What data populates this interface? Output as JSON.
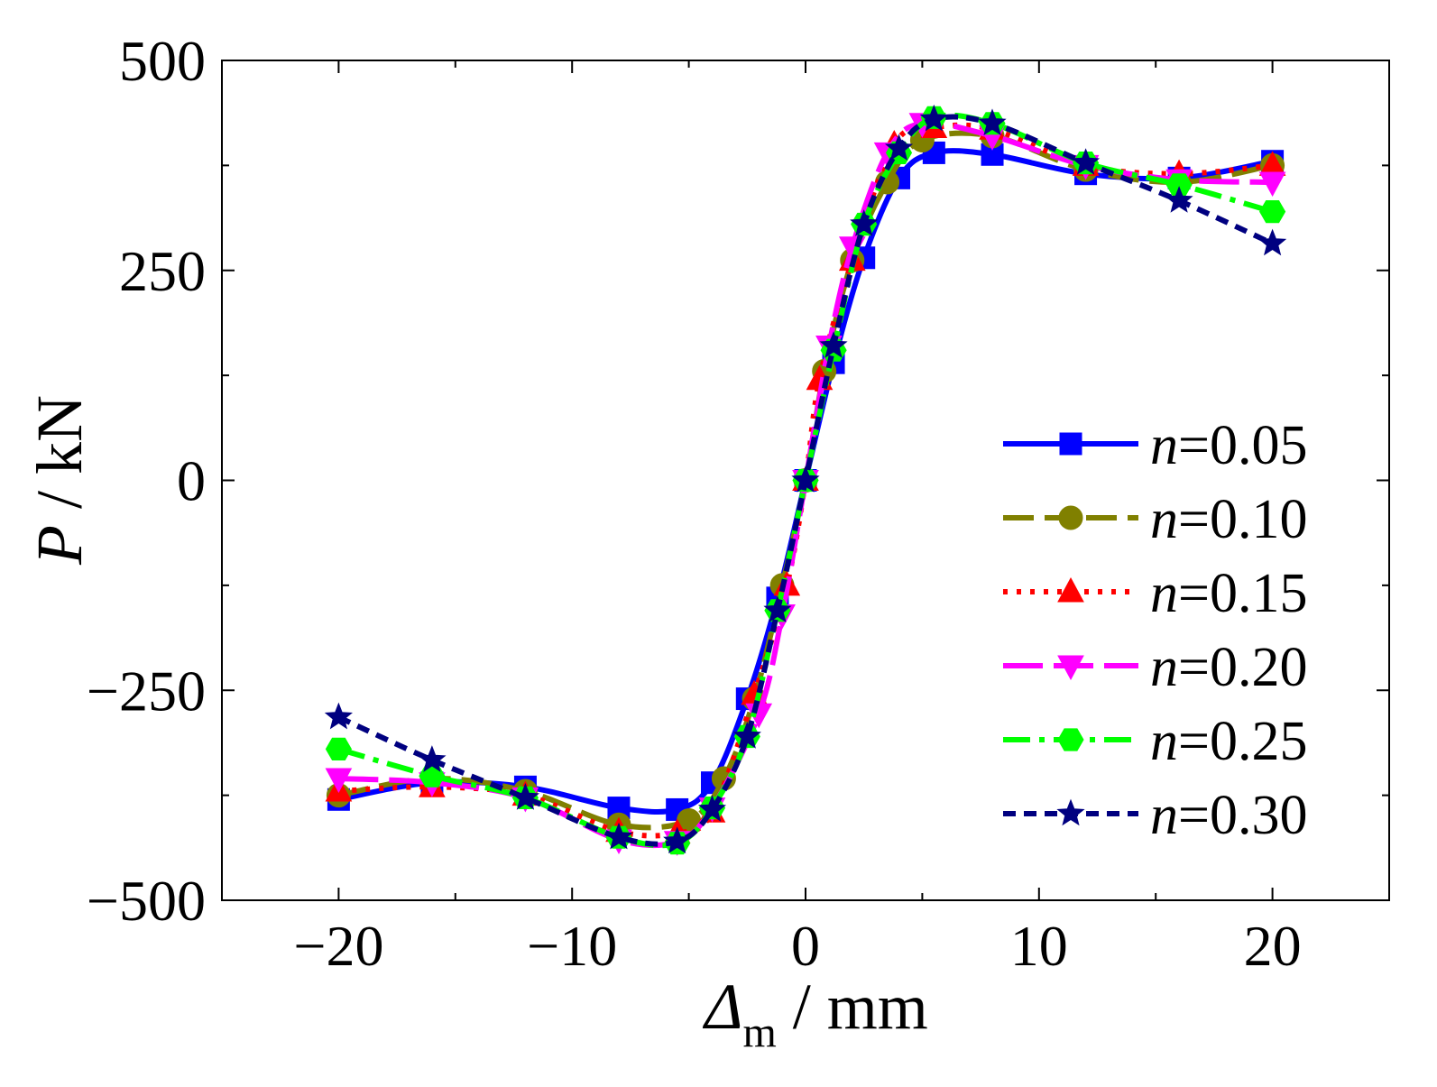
{
  "chart_data": {
    "type": "line",
    "title": "",
    "xlabel": {
      "symbol": "Δ",
      "subscript": "m",
      "unit": " / mm"
    },
    "ylabel": {
      "symbol": "P",
      "unit": " / kN"
    },
    "xlim": [
      -25,
      25
    ],
    "ylim": [
      -500,
      500
    ],
    "xticks": [
      -20,
      -10,
      0,
      10,
      20
    ],
    "xtick_labels": [
      "−20",
      "−10",
      "0",
      "10",
      "20"
    ],
    "yticks": [
      -500,
      -250,
      0,
      250,
      500
    ],
    "ytick_labels": [
      "−500",
      "−250",
      "0",
      "250",
      "500"
    ],
    "grid": false,
    "legend_position": "right",
    "series": [
      {
        "name": "n=0.05",
        "label_var": "n",
        "label_val": "=0.05",
        "color": "#0000ff",
        "marker": "square",
        "dash": "solid",
        "x": [
          -20,
          -16,
          -12,
          -8,
          -5.5,
          -4,
          -2.5,
          -1.2,
          0,
          1.2,
          2.5,
          4,
          5.5,
          8,
          12,
          16,
          20
        ],
        "y": [
          -380,
          -360,
          -365,
          -390,
          -392,
          -360,
          -260,
          -140,
          0,
          140,
          265,
          360,
          390,
          388,
          365,
          360,
          380
        ]
      },
      {
        "name": "n=0.10",
        "label_var": "n",
        "label_val": "=0.10",
        "color": "#808000",
        "marker": "circle",
        "dash": "dash",
        "x": [
          -20,
          -16,
          -12,
          -8,
          -5,
          -3.5,
          -2.2,
          -1,
          0,
          0.8,
          2,
          3.5,
          5,
          8,
          12,
          16,
          20
        ],
        "y": [
          -375,
          -355,
          -370,
          -410,
          -405,
          -355,
          -260,
          -125,
          0,
          130,
          262,
          355,
          405,
          410,
          370,
          355,
          375
        ]
      },
      {
        "name": "n=0.15",
        "label_var": "n",
        "label_val": "=0.15",
        "color": "#ff0000",
        "marker": "triangle-up",
        "dash": "dot",
        "x": [
          -20,
          -16,
          -12,
          -8,
          -5.5,
          -4,
          -2.2,
          -0.8,
          0,
          0.6,
          2,
          3.8,
          5.5,
          8,
          12,
          16,
          20
        ],
        "y": [
          -370,
          -365,
          -375,
          -418,
          -420,
          -395,
          -255,
          -125,
          0,
          120,
          262,
          400,
          420,
          418,
          375,
          365,
          375
        ]
      },
      {
        "name": "n=0.20",
        "label_var": "n",
        "label_val": "=0.20",
        "color": "#ff00ff",
        "marker": "triangle-down",
        "dash": "longdash",
        "x": [
          -20,
          -16,
          -12,
          -8,
          -5.5,
          -4,
          -2,
          -1,
          0,
          1,
          2,
          3.5,
          5,
          8,
          12,
          16,
          20
        ],
        "y": [
          -355,
          -360,
          -378,
          -428,
          -430,
          -390,
          -278,
          -160,
          0,
          160,
          278,
          390,
          425,
          410,
          375,
          358,
          355
        ]
      },
      {
        "name": "n=0.25",
        "label_var": "n",
        "label_val": "=0.25",
        "color": "#00ff00",
        "marker": "hexagon",
        "dash": "dashdot",
        "x": [
          -20,
          -16,
          -12,
          -8,
          -5.5,
          -4,
          -2.5,
          -1.2,
          0,
          1.2,
          2.5,
          4,
          5.5,
          8,
          12,
          16,
          20
        ],
        "y": [
          -320,
          -352,
          -378,
          -425,
          -432,
          -390,
          -305,
          -155,
          0,
          155,
          305,
          390,
          432,
          425,
          378,
          352,
          320
        ]
      },
      {
        "name": "n=0.30",
        "label_var": "n",
        "label_val": "=0.30",
        "color": "#000080",
        "marker": "star",
        "dash": "shortdash",
        "x": [
          -20,
          -16,
          -12,
          -8,
          -5.5,
          -4,
          -2.5,
          -1.2,
          0,
          1.2,
          2.5,
          4,
          5.5,
          8,
          12,
          16,
          20
        ],
        "y": [
          -282,
          -333,
          -378,
          -425,
          -430,
          -392,
          -305,
          -155,
          0,
          160,
          305,
          395,
          430,
          425,
          378,
          333,
          282
        ]
      }
    ]
  }
}
